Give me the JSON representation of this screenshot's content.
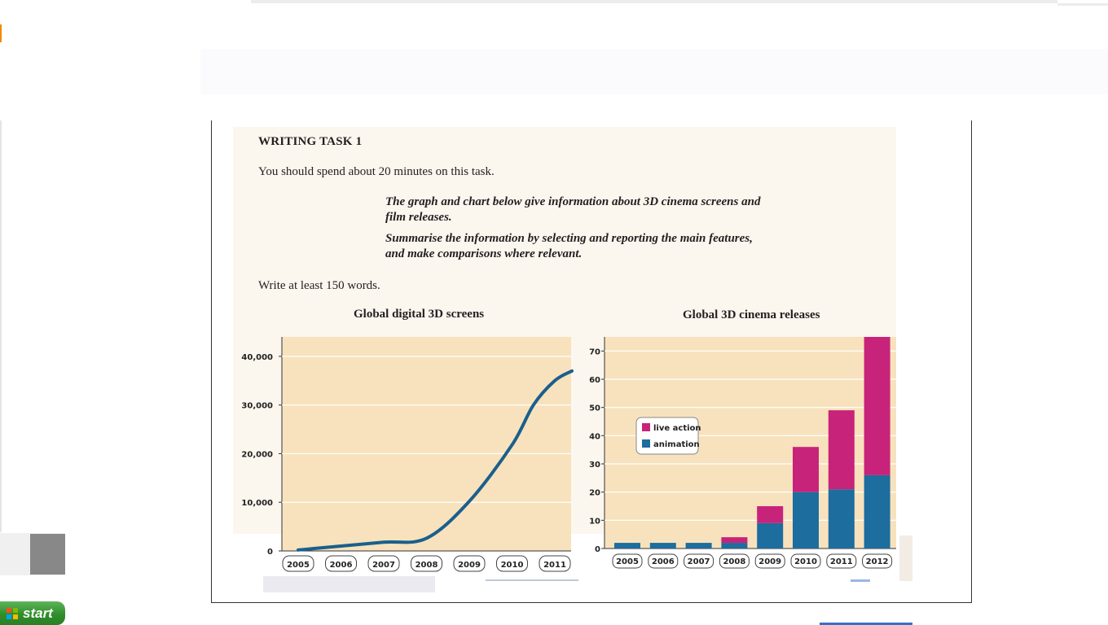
{
  "taskbar": {
    "start_label": "start"
  },
  "task": {
    "title": "WRITING TASK 1",
    "time_note": "You should spend about 20 minutes on this task.",
    "prompt_line1": "The graph and chart below give information about 3D cinema screens and film releases.",
    "prompt_line2": "Summarise the information by selecting and reporting the main features, and make comparisons where relevant.",
    "word_note": "Write at least 150 words."
  },
  "colors": {
    "plot_bg": "#f7e2bd",
    "line": "#1b5f8c",
    "live_action": "#c8237a",
    "animation": "#1d6d9e"
  },
  "chart_data": [
    {
      "type": "line",
      "title": "Global digital 3D screens",
      "xlabel": "",
      "ylabel": "",
      "categories": [
        "2005",
        "2006",
        "2007",
        "2008",
        "2009",
        "2010",
        "2011"
      ],
      "y_ticks": [
        "0",
        "10,000",
        "20,000",
        "30,000",
        "40,000"
      ],
      "ylim": [
        0,
        44000
      ],
      "grid": true,
      "series": [
        {
          "x": [
            2005.0,
            2006.0,
            2007.0,
            2008.0,
            2009.0,
            2010.0,
            2010.5,
            2011.0,
            2011.4
          ],
          "y": [
            200,
            1000,
            1800,
            2600,
            10200,
            21800,
            30000,
            35000,
            37000
          ]
        }
      ]
    },
    {
      "type": "bar",
      "title": "Global 3D cinema releases",
      "categories": [
        "2005",
        "2006",
        "2007",
        "2008",
        "2009",
        "2010",
        "2011",
        "2012"
      ],
      "y_ticks": [
        "0",
        "10",
        "20",
        "30",
        "40",
        "50",
        "60",
        "70"
      ],
      "ylim": [
        0,
        75
      ],
      "stacked": true,
      "legend": "upper-left",
      "grid": true,
      "series": [
        {
          "name": "animation",
          "values": [
            2,
            2,
            2,
            2,
            9,
            20,
            21,
            26
          ]
        },
        {
          "name": "live action",
          "values": [
            0,
            0,
            0,
            2,
            6,
            16,
            28,
            49
          ]
        }
      ]
    }
  ]
}
